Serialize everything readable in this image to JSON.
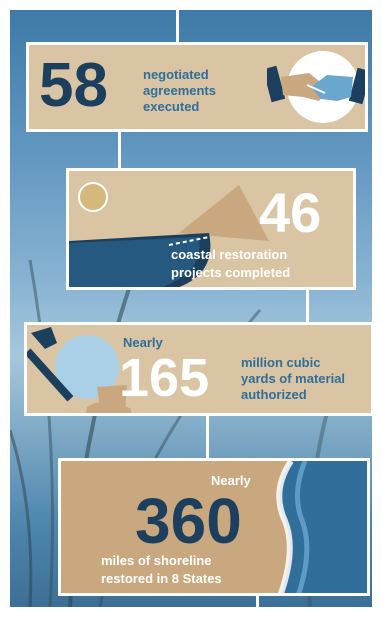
{
  "colors": {
    "navy": "#1c3f5e",
    "blue_text": "#2f6f9a",
    "tan": "#d9c4a3",
    "sand": "#c9a77f",
    "white": "#ffffff"
  },
  "stats": [
    {
      "number": "58",
      "lines": [
        "negotiated",
        "agreements",
        "executed"
      ],
      "icon": "handshake-icon"
    },
    {
      "number": "46",
      "lines": [
        "coastal restoration",
        "projects completed"
      ],
      "icon": "coastline-sun-icon"
    },
    {
      "prefix": "Nearly",
      "number": "165",
      "lines": [
        "million cubic",
        "yards of material",
        "authorized"
      ],
      "icon": "shovel-icon"
    },
    {
      "prefix": "Nearly",
      "number": "360",
      "lines": [
        "miles of shoreline",
        "restored in 8 States"
      ],
      "icon": "shoreline-icon"
    }
  ]
}
